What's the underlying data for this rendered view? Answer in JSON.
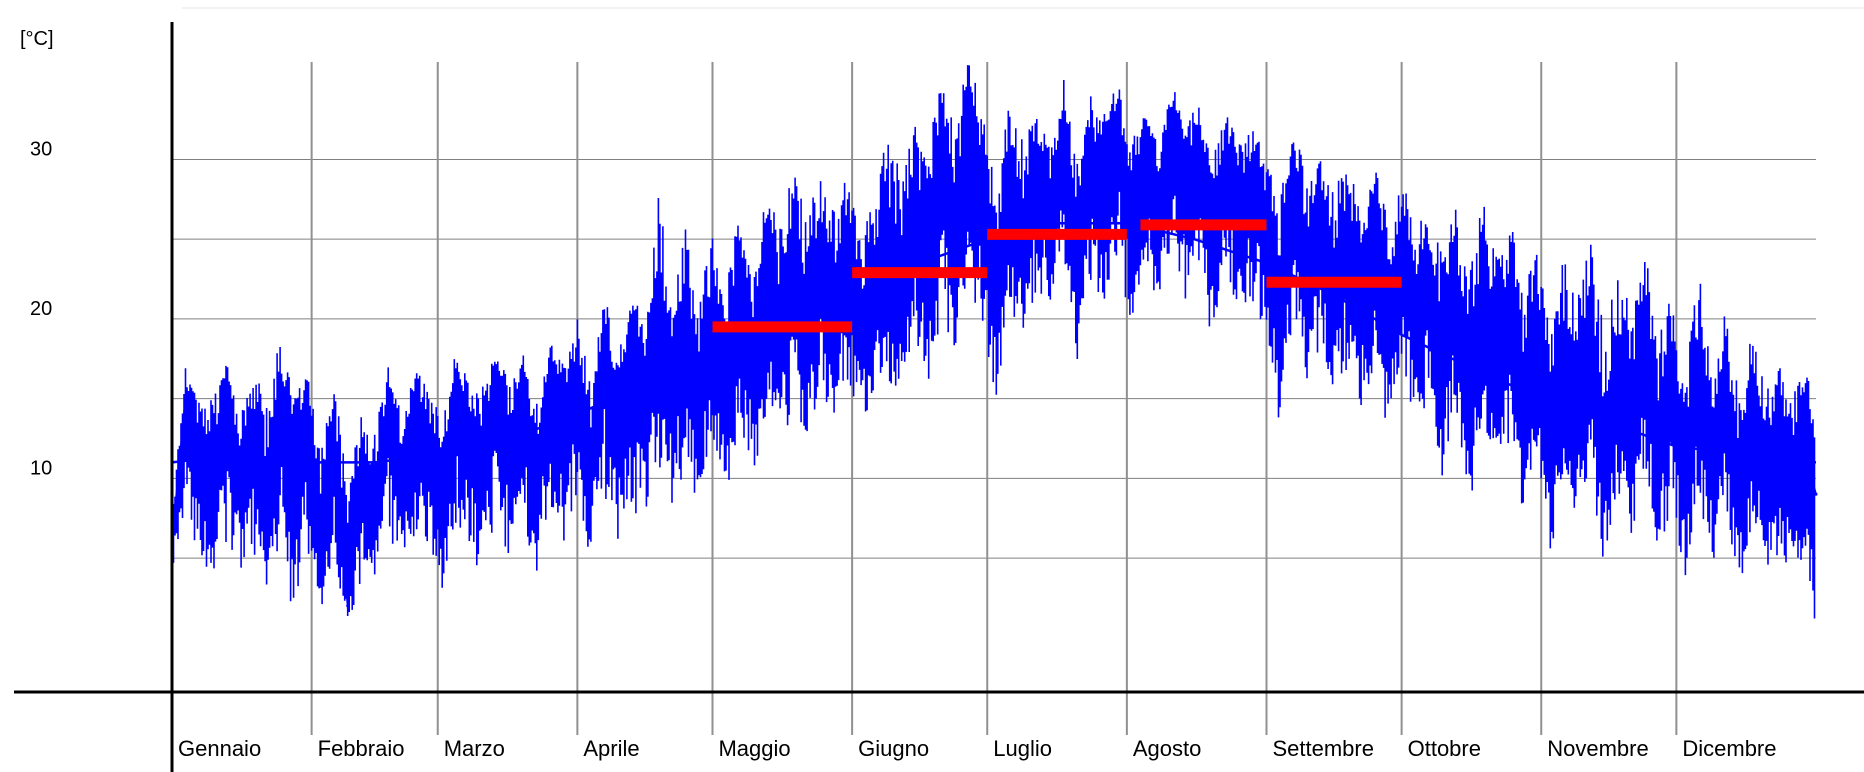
{
  "chart_data": {
    "type": "line",
    "title": "",
    "xlabel": "",
    "ylabel": "[°C]",
    "ylim": [
      -3.4,
      40
    ],
    "xlim": [
      0,
      365
    ],
    "yticks": [
      {
        "value": 10,
        "label": "10"
      },
      {
        "value": 20,
        "label": "20"
      },
      {
        "value": 30,
        "label": "30"
      }
    ],
    "y_gridlines": [
      5,
      10,
      15,
      20,
      25,
      30
    ],
    "months": [
      {
        "label": "Gennaio",
        "start_day": 0
      },
      {
        "label": "Febbraio",
        "start_day": 31
      },
      {
        "label": "Marzo",
        "start_day": 59
      },
      {
        "label": "Aprile",
        "start_day": 90
      },
      {
        "label": "Maggio",
        "start_day": 120
      },
      {
        "label": "Giugno",
        "start_day": 151
      },
      {
        "label": "Luglio",
        "start_day": 181
      },
      {
        "label": "Agosto",
        "start_day": 212
      },
      {
        "label": "Settembre",
        "start_day": 243
      },
      {
        "label": "Ottobre",
        "start_day": 273
      },
      {
        "label": "Novembre",
        "start_day": 304
      },
      {
        "label": "Dicembre",
        "start_day": 334
      }
    ],
    "series": [
      {
        "name": "",
        "kind": "daily-series",
        "color": "#0000ff",
        "x": [
          0,
          3,
          6,
          9,
          12,
          15,
          18,
          21,
          24,
          27,
          30,
          33,
          36,
          39,
          42,
          45,
          48,
          51,
          54,
          57,
          60,
          63,
          66,
          69,
          72,
          75,
          78,
          81,
          84,
          87,
          90,
          93,
          96,
          99,
          102,
          105,
          108,
          111,
          114,
          117,
          120,
          123,
          126,
          129,
          132,
          135,
          138,
          141,
          144,
          147,
          150,
          153,
          156,
          159,
          162,
          165,
          168,
          171,
          174,
          177,
          180,
          183,
          186,
          189,
          192,
          195,
          198,
          201,
          204,
          207,
          210,
          213,
          216,
          219,
          222,
          225,
          228,
          231,
          234,
          237,
          240,
          243,
          246,
          249,
          252,
          255,
          258,
          261,
          264,
          267,
          270,
          273,
          276,
          279,
          282,
          285,
          288,
          291,
          294,
          297,
          300,
          303,
          306,
          309,
          312,
          315,
          318,
          321,
          324,
          327,
          330,
          333,
          336,
          339,
          342,
          345,
          348,
          351,
          354,
          357,
          360,
          363,
          365
        ],
        "y": [
          6,
          15,
          12,
          9,
          16,
          10,
          13,
          8,
          15,
          11,
          14,
          6,
          13,
          2,
          11,
          8,
          15,
          10,
          14,
          12,
          9,
          16,
          13,
          11,
          16,
          12,
          15,
          10,
          17,
          14,
          16,
          11,
          18,
          13,
          17,
          15,
          20,
          16,
          19,
          15,
          20,
          16,
          21,
          17,
          22,
          19,
          23,
          18,
          24,
          20,
          24,
          19,
          22,
          24,
          21,
          26,
          23,
          31,
          25,
          33,
          27,
          22,
          28,
          25,
          30,
          27,
          31,
          24,
          30,
          28,
          32,
          26,
          30,
          27,
          32,
          28,
          31,
          25,
          30,
          27,
          29,
          26,
          20,
          28,
          23,
          26,
          22,
          25,
          21,
          24,
          19,
          25,
          20,
          23,
          17,
          22,
          15,
          21,
          17,
          20,
          14,
          19,
          12,
          17,
          14,
          18,
          11,
          16,
          13,
          19,
          12,
          16,
          10,
          17,
          11,
          15,
          9,
          14,
          10,
          12,
          10,
          11,
          9
        ],
        "y_low": [
          4,
          8,
          5,
          3,
          6,
          4,
          5,
          3,
          6,
          1,
          5,
          1,
          4,
          1,
          3,
          3,
          6,
          4,
          6,
          5,
          3,
          7,
          5,
          4,
          7,
          5,
          7,
          4,
          8,
          6,
          8,
          5,
          9,
          6,
          8,
          7,
          11,
          8,
          10,
          8,
          12,
          9,
          13,
          10,
          14,
          11,
          15,
          12,
          16,
          13,
          16,
          13,
          15,
          16,
          14,
          18,
          16,
          20,
          18,
          22,
          19,
          15,
          21,
          18,
          22,
          20,
          23,
          17,
          22,
          21,
          24,
          19,
          23,
          21,
          24,
          21,
          23,
          18,
          23,
          20,
          21,
          19,
          13,
          20,
          16,
          18,
          15,
          17,
          14,
          17,
          12,
          17,
          13,
          15,
          10,
          14,
          8,
          13,
          10,
          12,
          7,
          11,
          5,
          10,
          7,
          10,
          4,
          9,
          6,
          11,
          5,
          8,
          3,
          9,
          4,
          8,
          3,
          7,
          4,
          5,
          4,
          5,
          0
        ],
        "y_high": [
          8,
          17,
          15,
          15,
          18,
          14,
          17,
          15,
          19,
          16,
          17,
          12,
          16,
          10,
          14,
          13,
          17,
          14,
          17,
          16,
          14,
          18,
          16,
          16,
          18,
          16,
          18,
          15,
          19,
          17,
          20,
          16,
          23,
          18,
          24,
          20,
          28,
          22,
          26,
          21,
          26,
          22,
          27,
          23,
          28,
          26,
          30,
          26,
          30,
          27,
          29,
          25,
          28,
          32,
          30,
          33,
          31,
          36,
          32,
          37,
          33,
          28,
          34,
          31,
          33,
          31,
          35,
          30,
          34,
          33,
          35,
          31,
          34,
          31,
          35,
          32,
          34,
          30,
          33,
          31,
          32,
          30,
          28,
          32,
          29,
          30,
          28,
          30,
          27,
          30,
          26,
          29,
          26,
          27,
          24,
          27,
          23,
          28,
          24,
          27,
          21,
          26,
          20,
          24,
          21,
          26,
          19,
          24,
          20,
          25,
          19,
          22,
          17,
          23,
          17,
          21,
          15,
          20,
          16,
          17,
          16,
          17,
          13
        ]
      },
      {
        "name": "",
        "kind": "smoothed-trend",
        "color": "#0000ff",
        "x": [
          0,
          15,
          31,
          45,
          59,
          75,
          90,
          105,
          120,
          135,
          151,
          166,
          181,
          196,
          212,
          227,
          243,
          258,
          273,
          288,
          304,
          319,
          334,
          349,
          365
        ],
        "y": [
          11,
          11.5,
          11,
          11,
          11.5,
          12.5,
          14,
          16,
          17.5,
          19.5,
          21.5,
          23.5,
          25,
          26,
          26,
          25,
          23.5,
          21.5,
          19,
          17,
          15,
          13.5,
          12,
          11.5,
          11
        ]
      },
      {
        "name": "",
        "kind": "monthly-mean-bars",
        "color": "#ff0000",
        "segments": [
          {
            "start_day": 120,
            "end_day": 151,
            "value": 19.5
          },
          {
            "start_day": 151,
            "end_day": 181,
            "value": 22.9
          },
          {
            "start_day": 181,
            "end_day": 212,
            "value": 25.3
          },
          {
            "start_day": 215,
            "end_day": 243,
            "value": 25.9
          },
          {
            "start_day": 243,
            "end_day": 273,
            "value": 22.3
          }
        ]
      }
    ],
    "grid": true,
    "legend": "none"
  }
}
